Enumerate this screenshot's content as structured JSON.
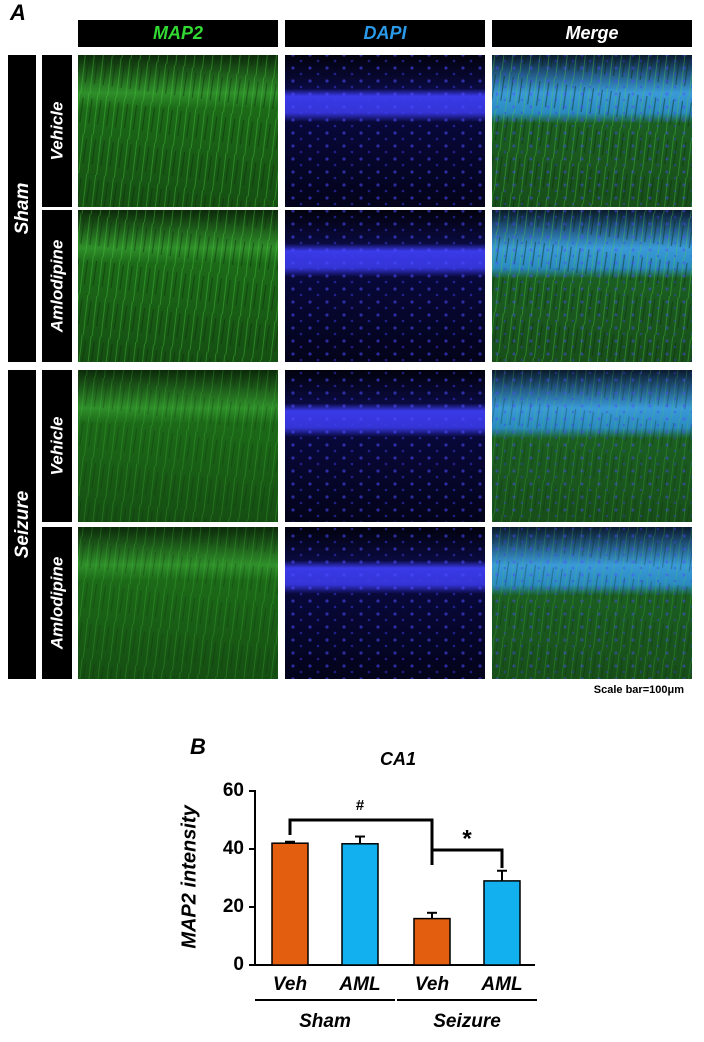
{
  "panel_a": {
    "label": "A",
    "columns": [
      "MAP2",
      "DAPI",
      "Merge"
    ],
    "groups": [
      {
        "name": "Sham",
        "rows": [
          "Vehicle",
          "Amlodipine"
        ]
      },
      {
        "name": "Seizure",
        "rows": [
          "Vehicle",
          "Amlodipine"
        ]
      }
    ],
    "scale_bar": "Scale bar=100μm"
  },
  "chart_data": {
    "type": "bar",
    "panel_label": "B",
    "title": "CA1",
    "y_label": "MAP2 intensity",
    "categories": [
      "Veh",
      "AML",
      "Veh",
      "AML"
    ],
    "values": [
      42,
      41.8,
      16,
      29
    ],
    "errors": [
      0.5,
      2.5,
      2,
      3.5
    ],
    "colors": [
      "#e35f0f",
      "#12b0ef",
      "#e35f0f",
      "#12b0ef"
    ],
    "groups": [
      {
        "name": "Sham",
        "categories": 2
      },
      {
        "name": "Seizure",
        "categories": 2
      }
    ],
    "ylim": [
      0,
      60
    ],
    "yticks": [
      0,
      20,
      40,
      60
    ],
    "annotations": [
      "#",
      "*"
    ]
  }
}
